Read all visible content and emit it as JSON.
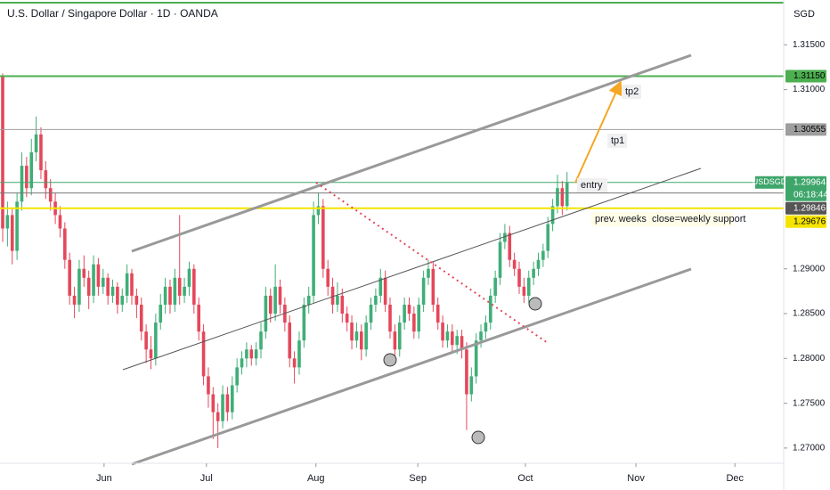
{
  "chart_data": {
    "type": "candlestick",
    "title": "U.S. Dollar / Singapore Dollar · 1D · OANDA",
    "currency": "SGD",
    "up_color": "#3fae77",
    "down_color": "#e5475a",
    "grid": false,
    "xlim": [
      -0.56,
      163.3
    ],
    "xticks": [
      {
        "value": 21.2,
        "label": "Jun"
      },
      {
        "value": 42.6,
        "label": "Jul"
      },
      {
        "value": 65.5,
        "label": "Aug"
      },
      {
        "value": 86.8,
        "label": "Sep"
      },
      {
        "value": 109.3,
        "label": "Oct"
      },
      {
        "value": 132.4,
        "label": "Nov"
      },
      {
        "value": 153.1,
        "label": "Dec"
      }
    ],
    "ylim": [
      1.2683,
      1.32
    ],
    "yticks": [
      {
        "value": 1.315,
        "label": "1.31500"
      },
      {
        "value": 1.31,
        "label": "1.31000"
      },
      {
        "value": 1.29,
        "label": "1.29000"
      },
      {
        "value": 1.285,
        "label": "1.28500"
      },
      {
        "value": 1.28,
        "label": "1.28000"
      },
      {
        "value": 1.275,
        "label": "1.27500"
      },
      {
        "value": 1.27,
        "label": "1.27000"
      }
    ],
    "levels": [
      {
        "price": {
          "value": 1.3115,
          "label": "1.31150"
        },
        "color": "#4caf50",
        "text_color": "#000000"
      },
      {
        "price": 1.30555,
        "color": "#9e9e9e",
        "text_color": "#000000"
      },
      {
        "symbol": "USDSGD",
        "price": 1.29964,
        "countdown": "06:18:44",
        "color": "#3fa66b",
        "text_color": "#ffffff"
      },
      {
        "price": 1.29846,
        "color": "#555555",
        "text_color": "#ffffff"
      },
      {
        "price": 1.29676,
        "color": "#f5e400",
        "text_color": "#000000"
      }
    ],
    "annotations": [
      "tp2",
      "tp1",
      "entry",
      "prev. weeks  close=weekly support"
    ],
    "candles": [
      [
        1.3115,
        1.3118,
        1.293,
        1.2945
      ],
      [
        1.2945,
        1.2975,
        1.2925,
        1.296
      ],
      [
        1.296,
        1.2968,
        1.2905,
        1.292
      ],
      [
        1.292,
        1.2985,
        1.291,
        1.2975
      ],
      [
        1.2975,
        1.303,
        1.2965,
        1.3015
      ],
      [
        1.3015,
        1.3025,
        1.298,
        1.299
      ],
      [
        1.299,
        1.3045,
        1.2982,
        1.303
      ],
      [
        1.303,
        1.307,
        1.302,
        1.305
      ],
      [
        1.305,
        1.3058,
        1.3,
        1.301
      ],
      [
        1.301,
        1.302,
        1.2978,
        1.299
      ],
      [
        1.299,
        1.3,
        1.2965,
        1.2975
      ],
      [
        1.2975,
        1.2985,
        1.295,
        1.296
      ],
      [
        1.296,
        1.297,
        1.2935,
        1.2945
      ],
      [
        1.2945,
        1.2952,
        1.29,
        1.291
      ],
      [
        1.291,
        1.2918,
        1.286,
        1.287
      ],
      [
        1.287,
        1.288,
        1.2845,
        1.286
      ],
      [
        1.286,
        1.291,
        1.2852,
        1.29
      ],
      [
        1.29,
        1.2915,
        1.288,
        1.289
      ],
      [
        1.289,
        1.2898,
        1.2855,
        1.287
      ],
      [
        1.287,
        1.2915,
        1.2862,
        1.2905
      ],
      [
        1.2905,
        1.2912,
        1.287,
        1.288
      ],
      [
        1.288,
        1.29,
        1.2872,
        1.289
      ],
      [
        1.289,
        1.2895,
        1.286,
        1.287
      ],
      [
        1.287,
        1.2888,
        1.2862,
        1.288
      ],
      [
        1.288,
        1.2885,
        1.285,
        1.286
      ],
      [
        1.286,
        1.2878,
        1.2852,
        1.287
      ],
      [
        1.287,
        1.2905,
        1.2862,
        1.2895
      ],
      [
        1.2895,
        1.29,
        1.286,
        1.287
      ],
      [
        1.287,
        1.2878,
        1.2845,
        1.286
      ],
      [
        1.286,
        1.2868,
        1.282,
        1.283
      ],
      [
        1.283,
        1.2838,
        1.2795,
        1.281
      ],
      [
        1.281,
        1.2825,
        1.2788,
        1.28
      ],
      [
        1.28,
        1.285,
        1.2792,
        1.284
      ],
      [
        1.284,
        1.2872,
        1.2832,
        1.286
      ],
      [
        1.286,
        1.289,
        1.285,
        1.288
      ],
      [
        1.288,
        1.2888,
        1.285,
        1.286
      ],
      [
        1.286,
        1.29,
        1.2852,
        1.289
      ],
      [
        1.289,
        1.296,
        1.286,
        1.287
      ],
      [
        1.287,
        1.289,
        1.2862,
        1.288
      ],
      [
        1.288,
        1.2908,
        1.287,
        1.29
      ],
      [
        1.29,
        1.2905,
        1.285,
        1.286
      ],
      [
        1.286,
        1.2868,
        1.282,
        1.283
      ],
      [
        1.283,
        1.2838,
        1.277,
        1.278
      ],
      [
        1.278,
        1.279,
        1.2745,
        1.276
      ],
      [
        1.276,
        1.2768,
        1.271,
        1.274
      ],
      [
        1.274,
        1.275,
        1.27,
        1.273
      ],
      [
        1.273,
        1.277,
        1.2722,
        1.276
      ],
      [
        1.276,
        1.2768,
        1.273,
        1.274
      ],
      [
        1.274,
        1.278,
        1.2732,
        1.277
      ],
      [
        1.277,
        1.28,
        1.2762,
        1.279
      ],
      [
        1.279,
        1.2808,
        1.2782,
        1.28
      ],
      [
        1.28,
        1.2818,
        1.279,
        1.281
      ],
      [
        1.281,
        1.2815,
        1.2792,
        1.28
      ],
      [
        1.28,
        1.2818,
        1.2792,
        1.281
      ],
      [
        1.281,
        1.284,
        1.28,
        1.283
      ],
      [
        1.283,
        1.288,
        1.2822,
        1.287
      ],
      [
        1.287,
        1.2878,
        1.284,
        1.285
      ],
      [
        1.285,
        1.2905,
        1.2842,
        1.288
      ],
      [
        1.288,
        1.2888,
        1.285,
        1.286
      ],
      [
        1.286,
        1.2868,
        1.283,
        1.284
      ],
      [
        1.284,
        1.2848,
        1.279,
        1.28
      ],
      [
        1.28,
        1.2808,
        1.2772,
        1.279
      ],
      [
        1.279,
        1.283,
        1.2782,
        1.282
      ],
      [
        1.282,
        1.2868,
        1.2812,
        1.286
      ],
      [
        1.286,
        1.288,
        1.285,
        1.287
      ],
      [
        1.287,
        1.2975,
        1.2862,
        1.296
      ],
      [
        1.296,
        1.2985,
        1.295,
        1.297
      ],
      [
        1.297,
        1.2978,
        1.289,
        1.29
      ],
      [
        1.29,
        1.291,
        1.287,
        1.288
      ],
      [
        1.288,
        1.289,
        1.285,
        1.286
      ],
      [
        1.286,
        1.2885,
        1.2852,
        1.287
      ],
      [
        1.287,
        1.2878,
        1.284,
        1.285
      ],
      [
        1.285,
        1.2858,
        1.283,
        1.284
      ],
      [
        1.284,
        1.2848,
        1.281,
        1.282
      ],
      [
        1.282,
        1.284,
        1.2812,
        1.283
      ],
      [
        1.283,
        1.2838,
        1.2798,
        1.281
      ],
      [
        1.281,
        1.2848,
        1.2802,
        1.284
      ],
      [
        1.284,
        1.2868,
        1.2832,
        1.286
      ],
      [
        1.286,
        1.2878,
        1.2852,
        1.287
      ],
      [
        1.287,
        1.29,
        1.2862,
        1.289
      ],
      [
        1.289,
        1.2898,
        1.2852,
        1.286
      ],
      [
        1.286,
        1.2868,
        1.2822,
        1.283
      ],
      [
        1.283,
        1.2838,
        1.2795,
        1.281
      ],
      [
        1.281,
        1.2848,
        1.2802,
        1.284
      ],
      [
        1.284,
        1.2868,
        1.2832,
        1.286
      ],
      [
        1.286,
        1.2868,
        1.2842,
        1.285
      ],
      [
        1.285,
        1.2858,
        1.2822,
        1.283
      ],
      [
        1.283,
        1.2868,
        1.2822,
        1.286
      ],
      [
        1.286,
        1.2898,
        1.2852,
        1.289
      ],
      [
        1.289,
        1.291,
        1.2882,
        1.29
      ],
      [
        1.29,
        1.2908,
        1.2852,
        1.286
      ],
      [
        1.286,
        1.2868,
        1.2832,
        1.284
      ],
      [
        1.284,
        1.2848,
        1.2812,
        1.282
      ],
      [
        1.282,
        1.2838,
        1.2812,
        1.283
      ],
      [
        1.283,
        1.2838,
        1.2808,
        1.2815
      ],
      [
        1.2815,
        1.2832,
        1.2805,
        1.2825
      ],
      [
        1.2825,
        1.2832,
        1.28,
        1.281
      ],
      [
        1.281,
        1.2818,
        1.272,
        1.276
      ],
      [
        1.276,
        1.279,
        1.2752,
        1.278
      ],
      [
        1.278,
        1.2828,
        1.2772,
        1.282
      ],
      [
        1.282,
        1.2838,
        1.2812,
        1.283
      ],
      [
        1.283,
        1.2848,
        1.2822,
        1.284
      ],
      [
        1.284,
        1.2878,
        1.2832,
        1.287
      ],
      [
        1.287,
        1.2898,
        1.2862,
        1.289
      ],
      [
        1.289,
        1.294,
        1.2882,
        1.293
      ],
      [
        1.293,
        1.295,
        1.2922,
        1.294
      ],
      [
        1.294,
        1.2948,
        1.2902,
        1.291
      ],
      [
        1.291,
        1.2918,
        1.2892,
        1.29
      ],
      [
        1.29,
        1.2908,
        1.2872,
        1.288
      ],
      [
        1.288,
        1.289,
        1.2862,
        1.287
      ],
      [
        1.287,
        1.2898,
        1.2862,
        1.289
      ],
      [
        1.289,
        1.2908,
        1.2882,
        1.29
      ],
      [
        1.29,
        1.2918,
        1.2892,
        1.291
      ],
      [
        1.291,
        1.2928,
        1.2902,
        1.292
      ],
      [
        1.292,
        1.2958,
        1.2912,
        1.295
      ],
      [
        1.295,
        1.2978,
        1.2942,
        1.297
      ],
      [
        1.297,
        1.3005,
        1.2962,
        1.299
      ],
      [
        1.299,
        1.2998,
        1.296,
        1.297
      ],
      [
        1.297,
        1.3008,
        1.2965,
        1.2996
      ]
    ]
  }
}
